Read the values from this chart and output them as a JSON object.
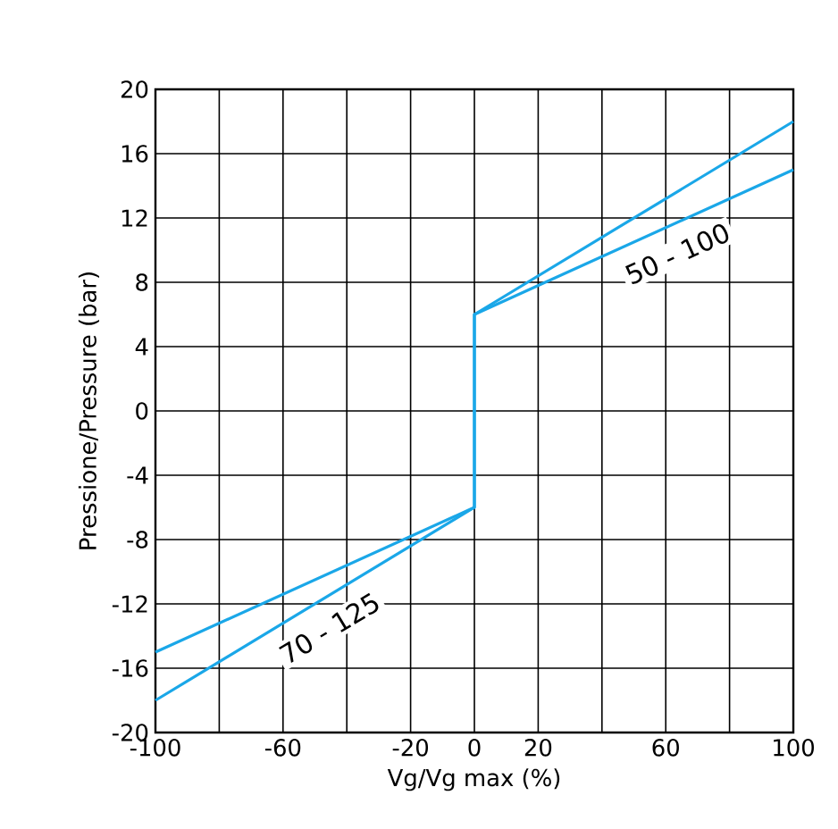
{
  "chart_data": {
    "type": "line",
    "xlabel": "Vg/Vg max (%)",
    "ylabel": "Pressione/Pressure (bar)",
    "xlim": [
      -100,
      100
    ],
    "ylim": [
      -20,
      20
    ],
    "xticks": [
      -100,
      {
        "value": -80,
        "label": null
      },
      -60,
      {
        "value": -40,
        "label": null
      },
      -20,
      0,
      20,
      {
        "value": 40,
        "label": null
      },
      60,
      {
        "value": 80,
        "label": null
      },
      100
    ],
    "yticks": [
      -20,
      -16,
      -12,
      -8,
      -4,
      0,
      4,
      8,
      12,
      16,
      20
    ],
    "grid": true,
    "legend": false,
    "marker": "none",
    "line_style": "solid",
    "series": [
      {
        "name": "50 - 100",
        "color": "#1aa7e8",
        "x": [
          -100,
          0,
          0,
          100
        ],
        "values": [
          -15,
          -6,
          6,
          15
        ]
      },
      {
        "name": "70 - 125",
        "color": "#1aa7e8",
        "x": [
          -100,
          0,
          0,
          100
        ],
        "values": [
          -18,
          -6,
          6,
          18
        ]
      }
    ]
  }
}
